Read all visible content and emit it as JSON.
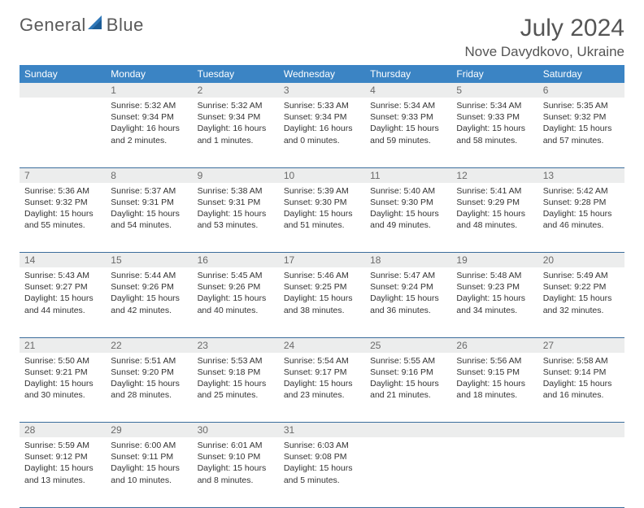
{
  "logo": {
    "text1": "General",
    "text2": "Blue"
  },
  "title": "July 2024",
  "location": "Nove Davydkovo, Ukraine",
  "colors": {
    "header_bg": "#3b84c4",
    "header_text": "#ffffff",
    "daynum_bg": "#eceded",
    "daynum_text": "#6a6a6a",
    "border": "#3b6d9c",
    "body_text": "#333333",
    "logo_text": "#5a5a5a",
    "logo_icon": "#2f77b8"
  },
  "weekdays": [
    "Sunday",
    "Monday",
    "Tuesday",
    "Wednesday",
    "Thursday",
    "Friday",
    "Saturday"
  ],
  "weeks": [
    [
      {
        "num": "",
        "lines": []
      },
      {
        "num": "1",
        "lines": [
          "Sunrise: 5:32 AM",
          "Sunset: 9:34 PM",
          "Daylight: 16 hours and 2 minutes."
        ]
      },
      {
        "num": "2",
        "lines": [
          "Sunrise: 5:32 AM",
          "Sunset: 9:34 PM",
          "Daylight: 16 hours and 1 minutes."
        ]
      },
      {
        "num": "3",
        "lines": [
          "Sunrise: 5:33 AM",
          "Sunset: 9:34 PM",
          "Daylight: 16 hours and 0 minutes."
        ]
      },
      {
        "num": "4",
        "lines": [
          "Sunrise: 5:34 AM",
          "Sunset: 9:33 PM",
          "Daylight: 15 hours and 59 minutes."
        ]
      },
      {
        "num": "5",
        "lines": [
          "Sunrise: 5:34 AM",
          "Sunset: 9:33 PM",
          "Daylight: 15 hours and 58 minutes."
        ]
      },
      {
        "num": "6",
        "lines": [
          "Sunrise: 5:35 AM",
          "Sunset: 9:32 PM",
          "Daylight: 15 hours and 57 minutes."
        ]
      }
    ],
    [
      {
        "num": "7",
        "lines": [
          "Sunrise: 5:36 AM",
          "Sunset: 9:32 PM",
          "Daylight: 15 hours and 55 minutes."
        ]
      },
      {
        "num": "8",
        "lines": [
          "Sunrise: 5:37 AM",
          "Sunset: 9:31 PM",
          "Daylight: 15 hours and 54 minutes."
        ]
      },
      {
        "num": "9",
        "lines": [
          "Sunrise: 5:38 AM",
          "Sunset: 9:31 PM",
          "Daylight: 15 hours and 53 minutes."
        ]
      },
      {
        "num": "10",
        "lines": [
          "Sunrise: 5:39 AM",
          "Sunset: 9:30 PM",
          "Daylight: 15 hours and 51 minutes."
        ]
      },
      {
        "num": "11",
        "lines": [
          "Sunrise: 5:40 AM",
          "Sunset: 9:30 PM",
          "Daylight: 15 hours and 49 minutes."
        ]
      },
      {
        "num": "12",
        "lines": [
          "Sunrise: 5:41 AM",
          "Sunset: 9:29 PM",
          "Daylight: 15 hours and 48 minutes."
        ]
      },
      {
        "num": "13",
        "lines": [
          "Sunrise: 5:42 AM",
          "Sunset: 9:28 PM",
          "Daylight: 15 hours and 46 minutes."
        ]
      }
    ],
    [
      {
        "num": "14",
        "lines": [
          "Sunrise: 5:43 AM",
          "Sunset: 9:27 PM",
          "Daylight: 15 hours and 44 minutes."
        ]
      },
      {
        "num": "15",
        "lines": [
          "Sunrise: 5:44 AM",
          "Sunset: 9:26 PM",
          "Daylight: 15 hours and 42 minutes."
        ]
      },
      {
        "num": "16",
        "lines": [
          "Sunrise: 5:45 AM",
          "Sunset: 9:26 PM",
          "Daylight: 15 hours and 40 minutes."
        ]
      },
      {
        "num": "17",
        "lines": [
          "Sunrise: 5:46 AM",
          "Sunset: 9:25 PM",
          "Daylight: 15 hours and 38 minutes."
        ]
      },
      {
        "num": "18",
        "lines": [
          "Sunrise: 5:47 AM",
          "Sunset: 9:24 PM",
          "Daylight: 15 hours and 36 minutes."
        ]
      },
      {
        "num": "19",
        "lines": [
          "Sunrise: 5:48 AM",
          "Sunset: 9:23 PM",
          "Daylight: 15 hours and 34 minutes."
        ]
      },
      {
        "num": "20",
        "lines": [
          "Sunrise: 5:49 AM",
          "Sunset: 9:22 PM",
          "Daylight: 15 hours and 32 minutes."
        ]
      }
    ],
    [
      {
        "num": "21",
        "lines": [
          "Sunrise: 5:50 AM",
          "Sunset: 9:21 PM",
          "Daylight: 15 hours and 30 minutes."
        ]
      },
      {
        "num": "22",
        "lines": [
          "Sunrise: 5:51 AM",
          "Sunset: 9:20 PM",
          "Daylight: 15 hours and 28 minutes."
        ]
      },
      {
        "num": "23",
        "lines": [
          "Sunrise: 5:53 AM",
          "Sunset: 9:18 PM",
          "Daylight: 15 hours and 25 minutes."
        ]
      },
      {
        "num": "24",
        "lines": [
          "Sunrise: 5:54 AM",
          "Sunset: 9:17 PM",
          "Daylight: 15 hours and 23 minutes."
        ]
      },
      {
        "num": "25",
        "lines": [
          "Sunrise: 5:55 AM",
          "Sunset: 9:16 PM",
          "Daylight: 15 hours and 21 minutes."
        ]
      },
      {
        "num": "26",
        "lines": [
          "Sunrise: 5:56 AM",
          "Sunset: 9:15 PM",
          "Daylight: 15 hours and 18 minutes."
        ]
      },
      {
        "num": "27",
        "lines": [
          "Sunrise: 5:58 AM",
          "Sunset: 9:14 PM",
          "Daylight: 15 hours and 16 minutes."
        ]
      }
    ],
    [
      {
        "num": "28",
        "lines": [
          "Sunrise: 5:59 AM",
          "Sunset: 9:12 PM",
          "Daylight: 15 hours and 13 minutes."
        ]
      },
      {
        "num": "29",
        "lines": [
          "Sunrise: 6:00 AM",
          "Sunset: 9:11 PM",
          "Daylight: 15 hours and 10 minutes."
        ]
      },
      {
        "num": "30",
        "lines": [
          "Sunrise: 6:01 AM",
          "Sunset: 9:10 PM",
          "Daylight: 15 hours and 8 minutes."
        ]
      },
      {
        "num": "31",
        "lines": [
          "Sunrise: 6:03 AM",
          "Sunset: 9:08 PM",
          "Daylight: 15 hours and 5 minutes."
        ]
      },
      {
        "num": "",
        "lines": []
      },
      {
        "num": "",
        "lines": []
      },
      {
        "num": "",
        "lines": []
      }
    ]
  ]
}
